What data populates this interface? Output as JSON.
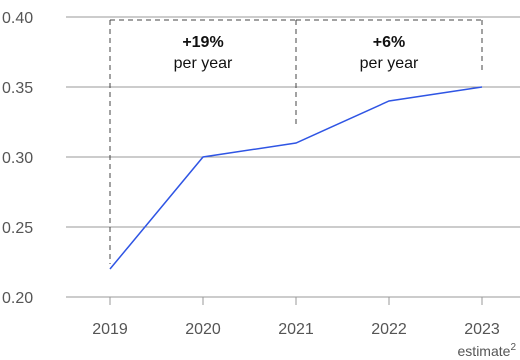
{
  "chart_data": {
    "type": "line",
    "x": [
      "2019",
      "2020",
      "2021",
      "2022",
      "2023"
    ],
    "series": [
      {
        "values": [
          0.22,
          0.3,
          0.31,
          0.34,
          0.35
        ],
        "color": "#2f55e4"
      }
    ],
    "ylim": [
      0.2,
      0.4
    ],
    "yticks": [
      "0.20",
      "0.25",
      "0.30",
      "0.35",
      "0.40"
    ],
    "grid": true,
    "x_note": "estimate",
    "x_note_superscript": "2",
    "annotations": [
      {
        "from": "2019",
        "to": "2021",
        "value": "+19%",
        "label": "per year"
      },
      {
        "from": "2021",
        "to": "2023",
        "value": "+6%",
        "label": "per year"
      }
    ]
  }
}
